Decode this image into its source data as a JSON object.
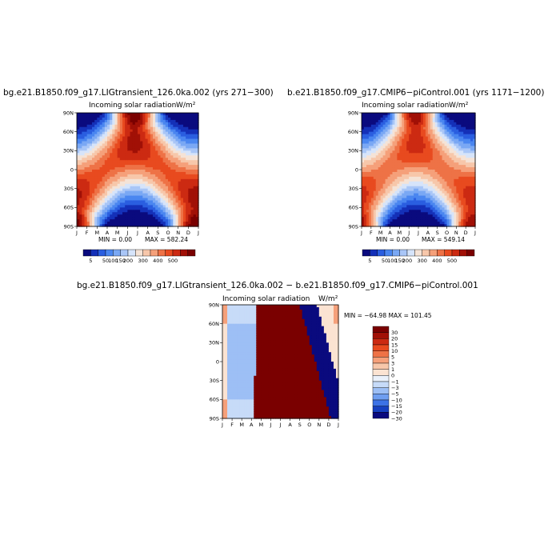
{
  "chart_data": [
    {
      "type": "contour",
      "title": "bg.e21.B1850.f09_g17.LIGtransient_126.0ka.002 (yrs 271−300)",
      "subtitle": "Incoming solar radiation",
      "units": "W/m²",
      "x_ticks": [
        "J",
        "F",
        "M",
        "A",
        "M",
        "J",
        "J",
        "A",
        "S",
        "O",
        "N",
        "D",
        "J"
      ],
      "y_ticks": [
        "90N",
        "60N",
        "30N",
        "0",
        "30S",
        "60S",
        "90S"
      ],
      "min_label": "MIN =     0.00",
      "max_label": "MAX = 582.24",
      "colorbar_levels": [
        "5",
        "50",
        "100",
        "150",
        "200",
        "300",
        "400",
        "500"
      ]
    },
    {
      "type": "contour",
      "title": "b.e21.B1850.f09_g17.CMIP6−piControl.001 (yrs 1171−1200)",
      "subtitle": "Incoming solar radiation",
      "units": "W/m²",
      "x_ticks": [
        "J",
        "F",
        "M",
        "A",
        "M",
        "J",
        "J",
        "A",
        "S",
        "O",
        "N",
        "D",
        "J"
      ],
      "y_ticks": [
        "90N",
        "60N",
        "30N",
        "0",
        "30S",
        "60S",
        "90S"
      ],
      "min_label": "MIN =     0.00",
      "max_label": "MAX = 549.14",
      "colorbar_levels": [
        "5",
        "50",
        "100",
        "150",
        "200",
        "300",
        "400",
        "500"
      ]
    },
    {
      "type": "contour",
      "title": "bg.e21.B1850.f09_g17.LIGtransient_126.0ka.002 − b.e21.B1850.f09_g17.CMIP6−piControl.001",
      "subtitle": "Incoming solar radiation",
      "units": "W/m²",
      "x_ticks": [
        "J",
        "F",
        "M",
        "A",
        "M",
        "J",
        "J",
        "A",
        "S",
        "O",
        "N",
        "D",
        "J"
      ],
      "y_ticks": [
        "90N",
        "60N",
        "30N",
        "0",
        "30S",
        "60S",
        "90S"
      ],
      "minmax_label": "MIN = −64.98  MAX = 101.45",
      "colorbar_levels": [
        "30",
        "20",
        "15",
        "10",
        "5",
        "3",
        "1",
        "0",
        "−1",
        "−3",
        "−5",
        "−10",
        "−15",
        "−20",
        "−30"
      ]
    }
  ],
  "colors": {
    "abs_scale": [
      "#0a0a7e",
      "#1430b8",
      "#2a5ee0",
      "#4a86f0",
      "#7aa8f4",
      "#a9c6f7",
      "#d6e4fa",
      "#f5e3d6",
      "#f7c7aa",
      "#f5a07a",
      "#ee7246",
      "#e84a1f",
      "#cc2a12",
      "#a11006",
      "#7a0000"
    ],
    "diff_scale": [
      "#7a0000",
      "#a11006",
      "#cc2a12",
      "#e84a1f",
      "#ee7246",
      "#f5a07a",
      "#f7c7aa",
      "#fbe3d2",
      "#eaf1fb",
      "#c7dbf8",
      "#9dbff5",
      "#6f9ef0",
      "#3c72e6",
      "#1640c0",
      "#0a0a7e"
    ]
  }
}
